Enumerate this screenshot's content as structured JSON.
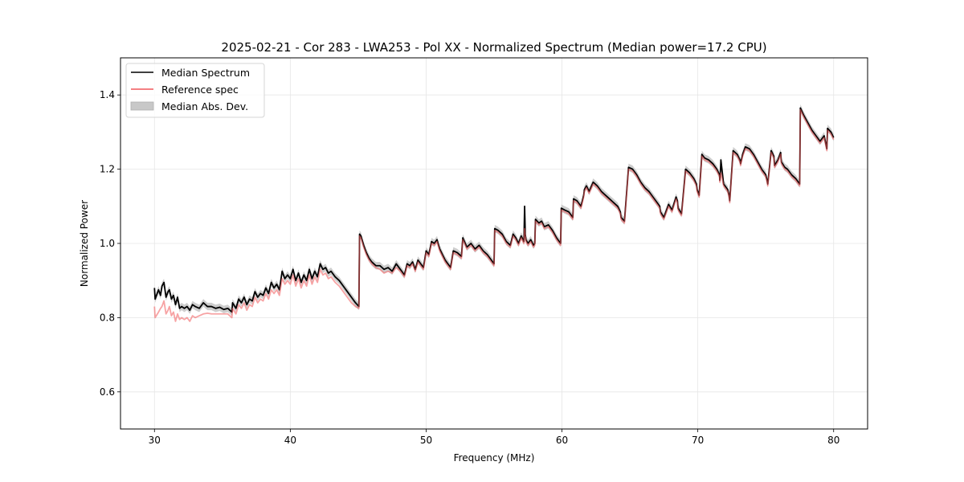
{
  "chart_data": {
    "type": "line",
    "title": "2025-02-21 - Cor 283 - LWA253 - Pol XX - Normalized Spectrum (Median power=17.2 CPU)",
    "xlabel": "Frequency (MHz)",
    "ylabel": "Normalized Power",
    "xlim": [
      27.5,
      82.5
    ],
    "ylim": [
      0.5,
      1.5
    ],
    "xticks": [
      30,
      40,
      50,
      60,
      70,
      80
    ],
    "xtick_labels": [
      "30",
      "40",
      "50",
      "60",
      "70",
      "80"
    ],
    "yticks": [
      0.6,
      0.8,
      1.0,
      1.2,
      1.4
    ],
    "ytick_labels": [
      "0.6",
      "0.8",
      "1.0",
      "1.2",
      "1.4"
    ],
    "grid": true,
    "legend_position": "top-left",
    "legend": [
      {
        "label": "Median Spectrum",
        "kind": "line",
        "color": "#000000"
      },
      {
        "label": "Reference spec",
        "kind": "line",
        "color": "#f0575a"
      },
      {
        "label": "Median Abs. Dev.",
        "kind": "band",
        "color": "#c8c8c8"
      }
    ],
    "series": [
      {
        "name": "Median Spectrum",
        "color": "#000000",
        "x": [
          30.0,
          30.05,
          30.3,
          30.45,
          30.55,
          30.7,
          30.85,
          31.0,
          31.1,
          31.25,
          31.4,
          31.55,
          31.7,
          31.85,
          32.0,
          32.2,
          32.4,
          32.6,
          32.8,
          33.0,
          33.3,
          33.6,
          33.9,
          34.2,
          34.5,
          34.8,
          35.1,
          35.4,
          35.7,
          35.75,
          36.0,
          36.2,
          36.4,
          36.6,
          36.8,
          37.0,
          37.2,
          37.4,
          37.6,
          37.8,
          38.0,
          38.2,
          38.4,
          38.6,
          38.8,
          39.0,
          39.2,
          39.4,
          39.6,
          39.8,
          40.0,
          40.2,
          40.4,
          40.6,
          40.8,
          41.0,
          41.2,
          41.4,
          41.6,
          41.8,
          42.0,
          42.2,
          42.4,
          42.6,
          42.8,
          43.0,
          43.3,
          43.6,
          43.9,
          44.2,
          44.5,
          44.8,
          45.05,
          45.1,
          45.2,
          45.4,
          45.6,
          45.8,
          46.0,
          46.3,
          46.6,
          46.9,
          47.2,
          47.5,
          47.8,
          48.1,
          48.4,
          48.6,
          48.8,
          49.0,
          49.2,
          49.4,
          49.6,
          49.8,
          50.0,
          50.2,
          50.4,
          50.6,
          50.8,
          51.0,
          51.2,
          51.4,
          51.6,
          51.8,
          52.0,
          52.3,
          52.6,
          52.7,
          53.0,
          53.3,
          53.6,
          53.9,
          54.2,
          54.5,
          54.8,
          55.0,
          55.05,
          55.3,
          55.6,
          55.9,
          56.2,
          56.4,
          56.6,
          56.8,
          57.0,
          57.2,
          57.25,
          57.3,
          57.35,
          57.5,
          57.7,
          57.9,
          58.0,
          58.05,
          58.3,
          58.5,
          58.7,
          59.0,
          59.3,
          59.6,
          59.9,
          59.95,
          60.2,
          60.5,
          60.8,
          60.85,
          61.1,
          61.4,
          61.6,
          61.65,
          61.8,
          62.0,
          62.3,
          62.6,
          62.9,
          63.2,
          63.5,
          63.8,
          64.1,
          64.3,
          64.35,
          64.6,
          64.9,
          65.2,
          65.5,
          65.8,
          66.1,
          66.4,
          66.7,
          67.0,
          67.2,
          67.25,
          67.5,
          67.8,
          67.85,
          68.1,
          68.4,
          68.5,
          68.55,
          68.8,
          69.1,
          69.4,
          69.7,
          69.9,
          69.95,
          70.1,
          70.3,
          70.5,
          70.8,
          71.1,
          71.4,
          71.6,
          71.62,
          71.65,
          71.7,
          71.9,
          72.2,
          72.3,
          72.35,
          72.6,
          72.9,
          73.1,
          73.15,
          73.3,
          73.5,
          73.8,
          74.1,
          74.4,
          74.7,
          75.0,
          75.1,
          75.15,
          75.4,
          75.6,
          75.65,
          75.9,
          76.1,
          76.15,
          76.4,
          76.6,
          76.9,
          77.2,
          77.5,
          77.55,
          77.8,
          78.1,
          78.4,
          78.7,
          79.0,
          79.3,
          79.5,
          79.55,
          79.8,
          80.0
        ],
        "y": [
          0.88,
          0.85,
          0.875,
          0.86,
          0.885,
          0.895,
          0.855,
          0.87,
          0.875,
          0.85,
          0.86,
          0.835,
          0.855,
          0.825,
          0.83,
          0.825,
          0.83,
          0.82,
          0.835,
          0.83,
          0.825,
          0.84,
          0.83,
          0.83,
          0.825,
          0.828,
          0.822,
          0.825,
          0.815,
          0.84,
          0.825,
          0.85,
          0.84,
          0.855,
          0.835,
          0.85,
          0.845,
          0.87,
          0.855,
          0.865,
          0.86,
          0.88,
          0.865,
          0.895,
          0.88,
          0.89,
          0.875,
          0.925,
          0.905,
          0.915,
          0.905,
          0.93,
          0.9,
          0.92,
          0.895,
          0.915,
          0.9,
          0.93,
          0.905,
          0.925,
          0.91,
          0.945,
          0.93,
          0.935,
          0.92,
          0.925,
          0.91,
          0.9,
          0.885,
          0.87,
          0.855,
          0.84,
          0.83,
          1.025,
          1.02,
          0.995,
          0.975,
          0.96,
          0.95,
          0.94,
          0.94,
          0.93,
          0.935,
          0.925,
          0.945,
          0.93,
          0.915,
          0.945,
          0.94,
          0.95,
          0.93,
          0.955,
          0.945,
          0.935,
          0.98,
          0.97,
          1.005,
          1.0,
          1.01,
          0.985,
          0.97,
          0.955,
          0.945,
          0.935,
          0.98,
          0.975,
          0.965,
          1.015,
          0.99,
          1.0,
          0.985,
          0.995,
          0.98,
          0.97,
          0.955,
          0.945,
          1.04,
          1.035,
          1.025,
          1.005,
          0.995,
          1.025,
          1.015,
          1.0,
          1.02,
          1.005,
          1.1,
          1.025,
          1.01,
          1.0,
          1.01,
          0.995,
          1.0,
          1.065,
          1.055,
          1.06,
          1.045,
          1.05,
          1.035,
          1.015,
          1.0,
          1.095,
          1.09,
          1.085,
          1.07,
          1.12,
          1.115,
          1.1,
          1.13,
          1.145,
          1.155,
          1.14,
          1.165,
          1.155,
          1.14,
          1.13,
          1.12,
          1.11,
          1.1,
          1.085,
          1.07,
          1.06,
          1.205,
          1.2,
          1.185,
          1.165,
          1.15,
          1.14,
          1.125,
          1.11,
          1.1,
          1.085,
          1.07,
          1.1,
          1.105,
          1.09,
          1.125,
          1.115,
          1.095,
          1.08,
          1.2,
          1.19,
          1.175,
          1.16,
          1.145,
          1.13,
          1.24,
          1.23,
          1.225,
          1.215,
          1.2,
          1.185,
          1.17,
          1.18,
          1.225,
          1.16,
          1.145,
          1.13,
          1.115,
          1.25,
          1.24,
          1.225,
          1.215,
          1.24,
          1.26,
          1.255,
          1.24,
          1.22,
          1.2,
          1.185,
          1.17,
          1.16,
          1.25,
          1.235,
          1.21,
          1.225,
          1.245,
          1.22,
          1.205,
          1.2,
          1.185,
          1.175,
          1.16,
          1.365,
          1.345,
          1.325,
          1.305,
          1.29,
          1.275,
          1.29,
          1.255,
          1.31,
          1.3,
          1.285
        ],
        "mad": 0.01
      },
      {
        "name": "Reference spec",
        "color": "#f0575a",
        "x": [
          30.0,
          30.05,
          30.3,
          30.45,
          30.55,
          30.7,
          30.85,
          31.0,
          31.1,
          31.25,
          31.4,
          31.55,
          31.7,
          31.85,
          32.0,
          32.2,
          32.4,
          32.6,
          32.8,
          33.0,
          33.3,
          33.6,
          33.9,
          34.2,
          34.5,
          34.8,
          35.1,
          35.4,
          35.7,
          35.75,
          36.0,
          36.2,
          36.4,
          36.6,
          36.8,
          37.0,
          37.2,
          37.4,
          37.6,
          37.8,
          38.0,
          38.2,
          38.4,
          38.6,
          38.8,
          39.0,
          39.2,
          39.4,
          39.6,
          39.8,
          40.0,
          40.2,
          40.4,
          40.6,
          40.8,
          41.0,
          41.2,
          41.4,
          41.6,
          41.8,
          42.0,
          42.2,
          42.4,
          42.6,
          42.8,
          43.0,
          43.3,
          43.6,
          43.9,
          44.2,
          44.5,
          44.8,
          45.05,
          45.1,
          45.2,
          45.4,
          45.6,
          45.8,
          46.0,
          46.3,
          46.6,
          46.9,
          47.2,
          47.5,
          47.8,
          48.1,
          48.4,
          48.6,
          48.8,
          49.0,
          49.2,
          49.4,
          49.6,
          49.8,
          50.0,
          50.2,
          50.4,
          50.6,
          50.8,
          51.0,
          51.2,
          51.4,
          51.6,
          51.8,
          52.0,
          52.3,
          52.6,
          52.7,
          53.0,
          53.3,
          53.6,
          53.9,
          54.2,
          54.5,
          54.8,
          55.0,
          55.05,
          55.3,
          55.6,
          55.9,
          56.2,
          56.4,
          56.6,
          56.8,
          57.0,
          57.2,
          57.25,
          57.3,
          57.35,
          57.5,
          57.7,
          57.9,
          58.0,
          58.05,
          58.3,
          58.5,
          58.7,
          59.0,
          59.3,
          59.6,
          59.9,
          59.95,
          60.2,
          60.5,
          60.8,
          60.85,
          61.1,
          61.4,
          61.6,
          61.65,
          61.8,
          62.0,
          62.3,
          62.6,
          62.9,
          63.2,
          63.5,
          63.8,
          64.1,
          64.3,
          64.35,
          64.6,
          64.9,
          65.2,
          65.5,
          65.8,
          66.1,
          66.4,
          66.7,
          67.0,
          67.2,
          67.25,
          67.5,
          67.8,
          67.85,
          68.1,
          68.4,
          68.5,
          68.55,
          68.8,
          69.1,
          69.4,
          69.7,
          69.9,
          69.95,
          70.1,
          70.3,
          70.5,
          70.8,
          71.1,
          71.4,
          71.6,
          71.62,
          71.65,
          71.7,
          71.9,
          72.2,
          72.3,
          72.35,
          72.6,
          72.9,
          73.1,
          73.15,
          73.3,
          73.5,
          73.8,
          74.1,
          74.4,
          74.7,
          75.0,
          75.1,
          75.15,
          75.4,
          75.6,
          75.65,
          75.9,
          76.1,
          76.15,
          76.4,
          76.6,
          76.9,
          77.2,
          77.5,
          77.55,
          77.8,
          78.1,
          78.4,
          78.7,
          79.0,
          79.3,
          79.5,
          79.55,
          79.8,
          80.0
        ],
        "y": [
          0.83,
          0.8,
          0.815,
          0.825,
          0.83,
          0.845,
          0.81,
          0.82,
          0.83,
          0.805,
          0.815,
          0.79,
          0.81,
          0.795,
          0.8,
          0.795,
          0.8,
          0.79,
          0.805,
          0.8,
          0.805,
          0.81,
          0.812,
          0.81,
          0.81,
          0.81,
          0.81,
          0.81,
          0.8,
          0.825,
          0.81,
          0.835,
          0.825,
          0.84,
          0.82,
          0.835,
          0.83,
          0.855,
          0.84,
          0.85,
          0.845,
          0.865,
          0.85,
          0.875,
          0.865,
          0.875,
          0.86,
          0.905,
          0.89,
          0.9,
          0.89,
          0.915,
          0.885,
          0.905,
          0.88,
          0.9,
          0.885,
          0.915,
          0.89,
          0.91,
          0.895,
          0.93,
          0.915,
          0.92,
          0.905,
          0.91,
          0.895,
          0.885,
          0.87,
          0.855,
          0.84,
          0.83,
          0.825,
          1.02,
          1.015,
          0.99,
          0.97,
          0.955,
          0.945,
          0.935,
          0.93,
          0.92,
          0.925,
          0.92,
          0.935,
          0.925,
          0.91,
          0.94,
          0.935,
          0.945,
          0.925,
          0.95,
          0.94,
          0.93,
          0.975,
          0.965,
          1.0,
          0.995,
          1.005,
          0.98,
          0.965,
          0.95,
          0.94,
          0.93,
          0.975,
          0.97,
          0.96,
          1.01,
          0.985,
          0.995,
          0.98,
          0.99,
          0.975,
          0.965,
          0.95,
          0.94,
          1.035,
          1.03,
          1.02,
          1.0,
          0.99,
          1.02,
          1.01,
          0.995,
          1.015,
          1.0,
          1.04,
          1.02,
          1.005,
          0.995,
          1.005,
          0.99,
          0.995,
          1.06,
          1.05,
          1.055,
          1.04,
          1.045,
          1.03,
          1.01,
          0.995,
          1.09,
          1.085,
          1.08,
          1.065,
          1.115,
          1.11,
          1.095,
          1.125,
          1.14,
          1.15,
          1.135,
          1.16,
          1.15,
          1.135,
          1.125,
          1.115,
          1.105,
          1.095,
          1.08,
          1.065,
          1.055,
          1.2,
          1.195,
          1.18,
          1.16,
          1.145,
          1.135,
          1.12,
          1.105,
          1.095,
          1.08,
          1.065,
          1.095,
          1.1,
          1.085,
          1.12,
          1.11,
          1.09,
          1.075,
          1.195,
          1.185,
          1.17,
          1.155,
          1.14,
          1.125,
          1.235,
          1.225,
          1.22,
          1.21,
          1.195,
          1.18,
          1.165,
          1.175,
          1.19,
          1.155,
          1.14,
          1.125,
          1.11,
          1.245,
          1.235,
          1.22,
          1.21,
          1.235,
          1.255,
          1.25,
          1.235,
          1.215,
          1.195,
          1.18,
          1.165,
          1.155,
          1.245,
          1.23,
          1.205,
          1.22,
          1.24,
          1.215,
          1.2,
          1.195,
          1.18,
          1.17,
          1.155,
          1.36,
          1.34,
          1.32,
          1.3,
          1.285,
          1.27,
          1.285,
          1.25,
          1.305,
          1.295,
          1.28
        ]
      }
    ]
  }
}
